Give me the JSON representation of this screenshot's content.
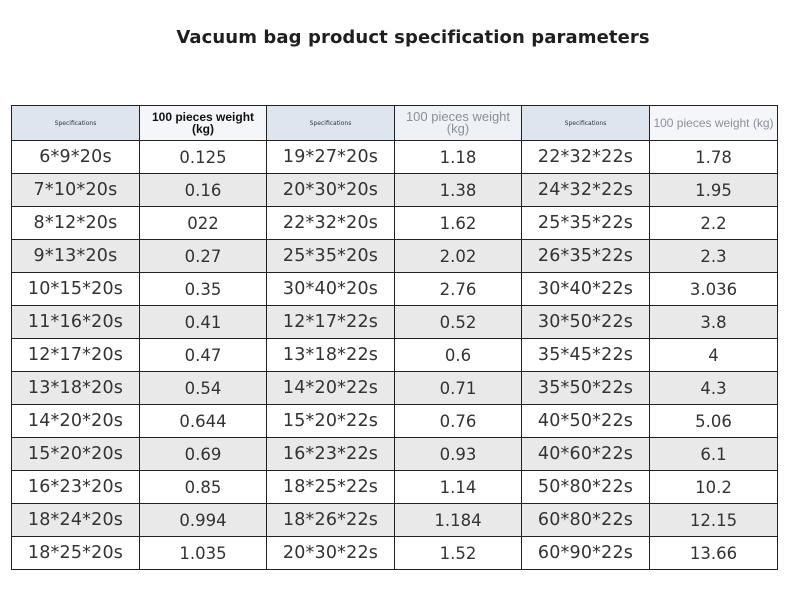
{
  "title": "Vacuum bag product specification parameters",
  "headers": {
    "spec": "Specifications",
    "weight": "100 pieces weight (kg)"
  },
  "rows": [
    [
      "6*9*20s",
      "0.125",
      "19*27*20s",
      "1.18",
      "22*32*22s",
      "1.78"
    ],
    [
      "7*10*20s",
      "0.16",
      "20*30*20s",
      "1.38",
      "24*32*22s",
      "1.95"
    ],
    [
      "8*12*20s",
      "022",
      "22*32*20s",
      "1.62",
      "25*35*22s",
      "2.2"
    ],
    [
      "9*13*20s",
      "0.27",
      "25*35*20s",
      "2.02",
      "26*35*22s",
      "2.3"
    ],
    [
      "10*15*20s",
      "0.35",
      "30*40*20s",
      "2.76",
      "30*40*22s",
      "3.036"
    ],
    [
      "11*16*20s",
      "0.41",
      "12*17*22s",
      "0.52",
      "30*50*22s",
      "3.8"
    ],
    [
      "12*17*20s",
      "0.47",
      "13*18*22s",
      "0.6",
      "35*45*22s",
      "4"
    ],
    [
      "13*18*20s",
      "0.54",
      "14*20*22s",
      "0.71",
      "35*50*22s",
      "4.3"
    ],
    [
      "14*20*20s",
      "0.644",
      "15*20*22s",
      "0.76",
      "40*50*22s",
      "5.06"
    ],
    [
      "15*20*20s",
      "0.69",
      "16*23*22s",
      "0.93",
      "40*60*22s",
      "6.1"
    ],
    [
      "16*23*20s",
      "0.85",
      "18*25*22s",
      "1.14",
      "50*80*22s",
      "10.2"
    ],
    [
      "18*24*20s",
      "0.994",
      "18*26*22s",
      "1.184",
      "60*80*22s",
      "12.15"
    ],
    [
      "18*25*20s",
      "1.035",
      "20*30*22s",
      "1.52",
      "60*90*22s",
      "13.66"
    ]
  ]
}
